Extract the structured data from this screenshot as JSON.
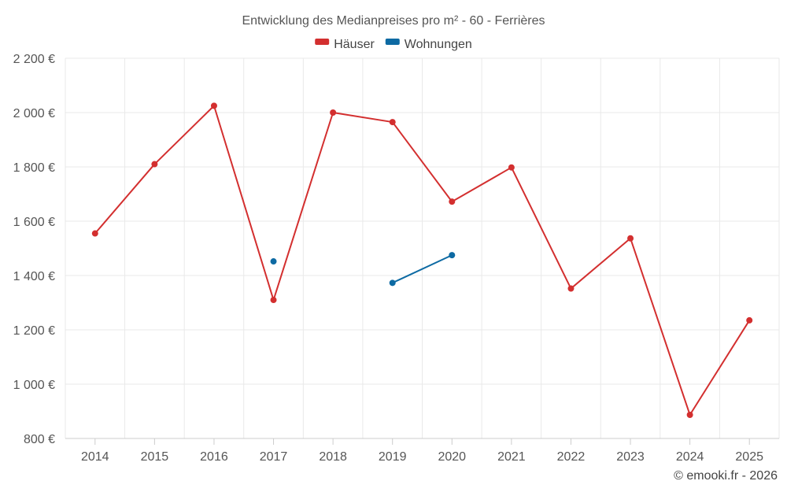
{
  "chart_data": {
    "type": "line",
    "title": "Entwicklung des Medianpreises pro m² - 60 - Ferrières",
    "categories": [
      "2014",
      "2015",
      "2016",
      "2017",
      "2018",
      "2019",
      "2020",
      "2021",
      "2022",
      "2023",
      "2024",
      "2025"
    ],
    "y_tick_values": [
      800,
      1000,
      1200,
      1400,
      1600,
      1800,
      2000,
      2200
    ],
    "y_tick_labels": [
      "800 €",
      "1 000 €",
      "1 200 €",
      "1 400 €",
      "1 600 €",
      "1 800 €",
      "2 000 €",
      "2 200 €"
    ],
    "ylim": [
      800,
      2200
    ],
    "grid": true,
    "legend_position": "top-center",
    "series": [
      {
        "name": "Häuser",
        "color": "#d32f2f",
        "values": [
          1555,
          1810,
          2025,
          1310,
          2000,
          1965,
          1672,
          1798,
          1352,
          1537,
          887,
          1235
        ]
      },
      {
        "name": "Wohnungen",
        "color": "#0d6aa3",
        "values": [
          null,
          null,
          null,
          1452,
          null,
          1373,
          1475,
          null,
          null,
          null,
          null,
          null
        ]
      }
    ],
    "credit": "© emooki.fr - 2026"
  }
}
